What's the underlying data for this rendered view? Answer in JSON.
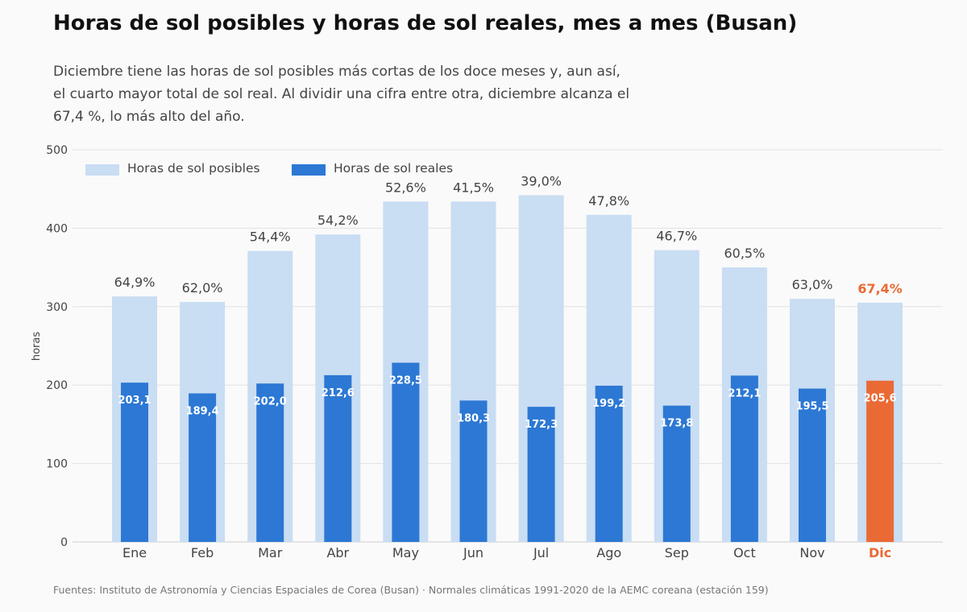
{
  "title": "Horas de sol posibles y horas de sol reales, mes a mes (Busan)",
  "subtitle": "Diciembre tiene las horas de sol posibles más cortas de los doce meses y, aun así, el cuarto mayor total de sol real. Al dividir una cifra entre otra, diciembre alcanza el 67,4 %, lo más alto del año.",
  "source": "Fuentes: Instituto de Astronomía y Ciencias Espaciales de Corea (Busan) · Normales climáticas 1991-2020 de la AEMC coreana (estación 159)",
  "legend": {
    "possible": "Horas de sol posibles",
    "actual": "Horas de sol reales"
  },
  "colors": {
    "possible": "#c9ddf3",
    "actual": "#2c78d4",
    "highlight": "#ea6a35",
    "grid": "#e2e2e2",
    "axis_text": "#444444"
  },
  "chart_data": {
    "type": "bar",
    "categories": [
      "Ene",
      "Feb",
      "Mar",
      "Abr",
      "May",
      "Jun",
      "Jul",
      "Ago",
      "Sep",
      "Oct",
      "Nov",
      "Dic"
    ],
    "series": [
      {
        "name": "Horas de sol posibles",
        "values": [
          313,
          306,
          371,
          392,
          434,
          434,
          442,
          417,
          372,
          350,
          310,
          305
        ]
      },
      {
        "name": "Horas de sol reales",
        "values": [
          203.1,
          189.4,
          202.0,
          212.6,
          228.5,
          180.3,
          172.3,
          199.2,
          173.8,
          212.1,
          195.5,
          205.6
        ]
      }
    ],
    "actual_labels": [
      "203,1",
      "189,4",
      "202,0",
      "212,6",
      "228,5",
      "180,3",
      "172,3",
      "199,2",
      "173,8",
      "212,1",
      "195,5",
      "205,6"
    ],
    "ratio_labels": [
      "64,9%",
      "62,0%",
      "54,4%",
      "54,2%",
      "52,6%",
      "41,5%",
      "39,0%",
      "47,8%",
      "46,7%",
      "60,5%",
      "63,0%",
      "67,4%"
    ],
    "highlight_index": 11,
    "ylabel": "horas",
    "xlabel": "",
    "ylim": [
      0,
      500
    ],
    "yticks": [
      0,
      100,
      200,
      300,
      400,
      500
    ],
    "grid": true,
    "legend_position": "top-left"
  }
}
